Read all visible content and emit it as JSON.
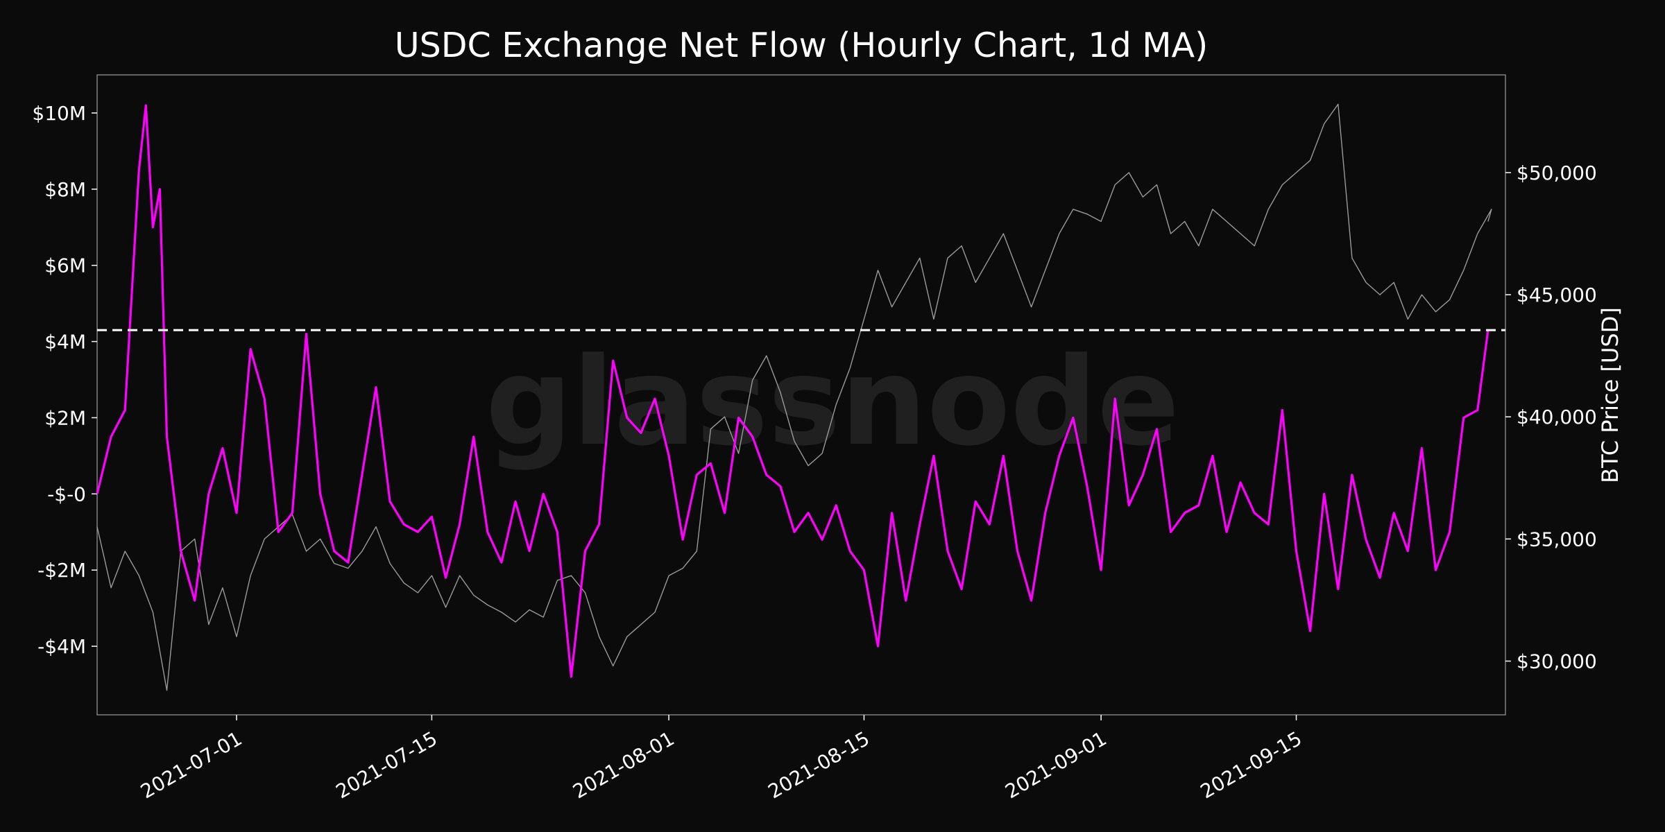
{
  "chart_data": {
    "type": "line",
    "title": "USDC Exchange Net Flow (Hourly Chart, 1d MA)",
    "watermark": "glassnode",
    "x_range": [
      "2021-06-21",
      "2021-09-30"
    ],
    "x_ticks": [
      "2021-07-01",
      "2021-07-15",
      "2021-08-01",
      "2021-08-15",
      "2021-09-01",
      "2021-09-15"
    ],
    "y_left": {
      "label": "",
      "range": [
        -5800000,
        11000000
      ],
      "ticks": [
        {
          "v": 10000000,
          "t": "$10M"
        },
        {
          "v": 8000000,
          "t": "$8M"
        },
        {
          "v": 6000000,
          "t": "$6M"
        },
        {
          "v": 4000000,
          "t": "$4M"
        },
        {
          "v": 2000000,
          "t": "$2M"
        },
        {
          "v": 0,
          "t": "-$-0"
        },
        {
          "v": -2000000,
          "t": "-$2M"
        },
        {
          "v": -4000000,
          "t": "-$4M"
        }
      ]
    },
    "y_right": {
      "label": "BTC Price [USD]",
      "range": [
        27800,
        54000
      ],
      "ticks": [
        {
          "v": 50000,
          "t": "$50,000"
        },
        {
          "v": 45000,
          "t": "$45,000"
        },
        {
          "v": 40000,
          "t": "$40,000"
        },
        {
          "v": 35000,
          "t": "$35,000"
        },
        {
          "v": 30000,
          "t": "$30,000"
        }
      ]
    },
    "reference_line": {
      "value": 4300000,
      "style": "dashed",
      "color": "#ffffff"
    },
    "series": [
      {
        "axis": "left",
        "color": "#ff00ff",
        "points": [
          [
            "2021-06-21",
            0
          ],
          [
            "2021-06-22",
            1500000
          ],
          [
            "2021-06-23",
            2200000
          ],
          [
            "2021-06-24",
            8500000
          ],
          [
            "2021-06-24T12",
            10200000
          ],
          [
            "2021-06-25",
            7000000
          ],
          [
            "2021-06-25T12",
            8000000
          ],
          [
            "2021-06-26",
            1500000
          ],
          [
            "2021-06-27",
            -1500000
          ],
          [
            "2021-06-28",
            -2800000
          ],
          [
            "2021-06-29",
            0
          ],
          [
            "2021-06-30",
            1200000
          ],
          [
            "2021-07-01",
            -500000
          ],
          [
            "2021-07-02",
            3800000
          ],
          [
            "2021-07-03",
            2500000
          ],
          [
            "2021-07-04",
            -1000000
          ],
          [
            "2021-07-05",
            -500000
          ],
          [
            "2021-07-06",
            4200000
          ],
          [
            "2021-07-07",
            0
          ],
          [
            "2021-07-08",
            -1500000
          ],
          [
            "2021-07-09",
            -1800000
          ],
          [
            "2021-07-10",
            500000
          ],
          [
            "2021-07-11",
            2800000
          ],
          [
            "2021-07-12",
            -200000
          ],
          [
            "2021-07-13",
            -800000
          ],
          [
            "2021-07-14",
            -1000000
          ],
          [
            "2021-07-15",
            -600000
          ],
          [
            "2021-07-16",
            -2200000
          ],
          [
            "2021-07-17",
            -800000
          ],
          [
            "2021-07-18",
            1500000
          ],
          [
            "2021-07-19",
            -1000000
          ],
          [
            "2021-07-20",
            -1800000
          ],
          [
            "2021-07-21",
            -200000
          ],
          [
            "2021-07-22",
            -1500000
          ],
          [
            "2021-07-23",
            0
          ],
          [
            "2021-07-24",
            -1000000
          ],
          [
            "2021-07-25",
            -4800000
          ],
          [
            "2021-07-26",
            -1500000
          ],
          [
            "2021-07-27",
            -800000
          ],
          [
            "2021-07-28",
            3500000
          ],
          [
            "2021-07-29",
            2000000
          ],
          [
            "2021-07-30",
            1600000
          ],
          [
            "2021-07-31",
            2500000
          ],
          [
            "2021-08-01",
            1000000
          ],
          [
            "2021-08-02",
            -1200000
          ],
          [
            "2021-08-03",
            500000
          ],
          [
            "2021-08-04",
            800000
          ],
          [
            "2021-08-05",
            -500000
          ],
          [
            "2021-08-06",
            2000000
          ],
          [
            "2021-08-07",
            1500000
          ],
          [
            "2021-08-08",
            500000
          ],
          [
            "2021-08-09",
            200000
          ],
          [
            "2021-08-10",
            -1000000
          ],
          [
            "2021-08-11",
            -500000
          ],
          [
            "2021-08-12",
            -1200000
          ],
          [
            "2021-08-13",
            -300000
          ],
          [
            "2021-08-14",
            -1500000
          ],
          [
            "2021-08-15",
            -2000000
          ],
          [
            "2021-08-16",
            -4000000
          ],
          [
            "2021-08-17",
            -500000
          ],
          [
            "2021-08-18",
            -2800000
          ],
          [
            "2021-08-19",
            -800000
          ],
          [
            "2021-08-20",
            1000000
          ],
          [
            "2021-08-21",
            -1500000
          ],
          [
            "2021-08-22",
            -2500000
          ],
          [
            "2021-08-23",
            -200000
          ],
          [
            "2021-08-24",
            -800000
          ],
          [
            "2021-08-25",
            1000000
          ],
          [
            "2021-08-26",
            -1500000
          ],
          [
            "2021-08-27",
            -2800000
          ],
          [
            "2021-08-28",
            -500000
          ],
          [
            "2021-08-29",
            1000000
          ],
          [
            "2021-08-30",
            2000000
          ],
          [
            "2021-08-31",
            200000
          ],
          [
            "2021-09-01",
            -2000000
          ],
          [
            "2021-09-02",
            2500000
          ],
          [
            "2021-09-03",
            -300000
          ],
          [
            "2021-09-04",
            500000
          ],
          [
            "2021-09-05",
            1700000
          ],
          [
            "2021-09-06",
            -1000000
          ],
          [
            "2021-09-07",
            -500000
          ],
          [
            "2021-09-08",
            -300000
          ],
          [
            "2021-09-09",
            1000000
          ],
          [
            "2021-09-10",
            -1000000
          ],
          [
            "2021-09-11",
            300000
          ],
          [
            "2021-09-12",
            -500000
          ],
          [
            "2021-09-13",
            -800000
          ],
          [
            "2021-09-14",
            2200000
          ],
          [
            "2021-09-15",
            -1500000
          ],
          [
            "2021-09-16",
            -3600000
          ],
          [
            "2021-09-17",
            0
          ],
          [
            "2021-09-18",
            -2500000
          ],
          [
            "2021-09-19",
            500000
          ],
          [
            "2021-09-20",
            -1200000
          ],
          [
            "2021-09-21",
            -2200000
          ],
          [
            "2021-09-22",
            -500000
          ],
          [
            "2021-09-23",
            -1500000
          ],
          [
            "2021-09-24",
            1200000
          ],
          [
            "2021-09-25",
            -2000000
          ],
          [
            "2021-09-26",
            -1000000
          ],
          [
            "2021-09-27",
            2000000
          ],
          [
            "2021-09-28",
            2200000
          ],
          [
            "2021-09-28T18",
            4300000
          ]
        ]
      },
      {
        "axis": "right",
        "color": "#9a9a9a",
        "points": [
          [
            "2021-06-21",
            35500
          ],
          [
            "2021-06-22",
            33000
          ],
          [
            "2021-06-23",
            34500
          ],
          [
            "2021-06-24",
            33500
          ],
          [
            "2021-06-25",
            32000
          ],
          [
            "2021-06-26",
            28800
          ],
          [
            "2021-06-27",
            34500
          ],
          [
            "2021-06-28",
            35000
          ],
          [
            "2021-06-29",
            31500
          ],
          [
            "2021-06-30",
            33000
          ],
          [
            "2021-07-01",
            31000
          ],
          [
            "2021-07-02",
            33500
          ],
          [
            "2021-07-03",
            35000
          ],
          [
            "2021-07-04",
            35500
          ],
          [
            "2021-07-05",
            36000
          ],
          [
            "2021-07-06",
            34500
          ],
          [
            "2021-07-07",
            35000
          ],
          [
            "2021-07-08",
            34000
          ],
          [
            "2021-07-09",
            33800
          ],
          [
            "2021-07-10",
            34500
          ],
          [
            "2021-07-11",
            35500
          ],
          [
            "2021-07-12",
            34000
          ],
          [
            "2021-07-13",
            33200
          ],
          [
            "2021-07-14",
            32800
          ],
          [
            "2021-07-15",
            33500
          ],
          [
            "2021-07-16",
            32200
          ],
          [
            "2021-07-17",
            33500
          ],
          [
            "2021-07-18",
            32700
          ],
          [
            "2021-07-19",
            32300
          ],
          [
            "2021-07-20",
            32000
          ],
          [
            "2021-07-21",
            31600
          ],
          [
            "2021-07-22",
            32100
          ],
          [
            "2021-07-23",
            31800
          ],
          [
            "2021-07-24",
            33300
          ],
          [
            "2021-07-25",
            33500
          ],
          [
            "2021-07-26",
            32800
          ],
          [
            "2021-07-27",
            31000
          ],
          [
            "2021-07-28",
            29800
          ],
          [
            "2021-07-29",
            31000
          ],
          [
            "2021-07-30",
            31500
          ],
          [
            "2021-07-31",
            32000
          ],
          [
            "2021-08-01",
            33500
          ],
          [
            "2021-08-02",
            33800
          ],
          [
            "2021-08-03",
            34500
          ],
          [
            "2021-08-04",
            39500
          ],
          [
            "2021-08-05",
            40000
          ],
          [
            "2021-08-06",
            38500
          ],
          [
            "2021-08-07",
            41500
          ],
          [
            "2021-08-08",
            42500
          ],
          [
            "2021-08-09",
            41000
          ],
          [
            "2021-08-10",
            39000
          ],
          [
            "2021-08-11",
            38000
          ],
          [
            "2021-08-12",
            38500
          ],
          [
            "2021-08-13",
            40500
          ],
          [
            "2021-08-14",
            42000
          ],
          [
            "2021-08-15",
            44000
          ],
          [
            "2021-08-16",
            46000
          ],
          [
            "2021-08-17",
            44500
          ],
          [
            "2021-08-18",
            45500
          ],
          [
            "2021-08-19",
            46500
          ],
          [
            "2021-08-20",
            44000
          ],
          [
            "2021-08-21",
            46500
          ],
          [
            "2021-08-22",
            47000
          ],
          [
            "2021-08-23",
            45500
          ],
          [
            "2021-08-24",
            46500
          ],
          [
            "2021-08-25",
            47500
          ],
          [
            "2021-08-26",
            46000
          ],
          [
            "2021-08-27",
            44500
          ],
          [
            "2021-08-28",
            46000
          ],
          [
            "2021-08-29",
            47500
          ],
          [
            "2021-08-30",
            48500
          ],
          [
            "2021-08-31",
            48300
          ],
          [
            "2021-09-01",
            48000
          ],
          [
            "2021-09-02",
            49500
          ],
          [
            "2021-09-03",
            50000
          ],
          [
            "2021-09-04",
            49000
          ],
          [
            "2021-09-05",
            49500
          ],
          [
            "2021-09-06",
            47500
          ],
          [
            "2021-09-07",
            48000
          ],
          [
            "2021-09-08",
            47000
          ],
          [
            "2021-09-09",
            48500
          ],
          [
            "2021-09-10",
            48000
          ],
          [
            "2021-09-11",
            47500
          ],
          [
            "2021-09-12",
            47000
          ],
          [
            "2021-09-13",
            48500
          ],
          [
            "2021-09-14",
            49500
          ],
          [
            "2021-09-15",
            50000
          ],
          [
            "2021-09-16",
            50500
          ],
          [
            "2021-09-17",
            52000
          ],
          [
            "2021-09-18",
            52800
          ],
          [
            "2021-09-19",
            46500
          ],
          [
            "2021-09-20",
            45500
          ],
          [
            "2021-09-21",
            45000
          ],
          [
            "2021-09-22",
            45500
          ],
          [
            "2021-09-23",
            44000
          ],
          [
            "2021-09-24",
            45000
          ],
          [
            "2021-09-25",
            44300
          ],
          [
            "2021-09-26",
            44800
          ],
          [
            "2021-09-27",
            46000
          ],
          [
            "2021-09-28",
            47500
          ],
          [
            "2021-09-29",
            48500
          ],
          [
            "2021-09-28T18",
            48000
          ]
        ]
      }
    ]
  }
}
